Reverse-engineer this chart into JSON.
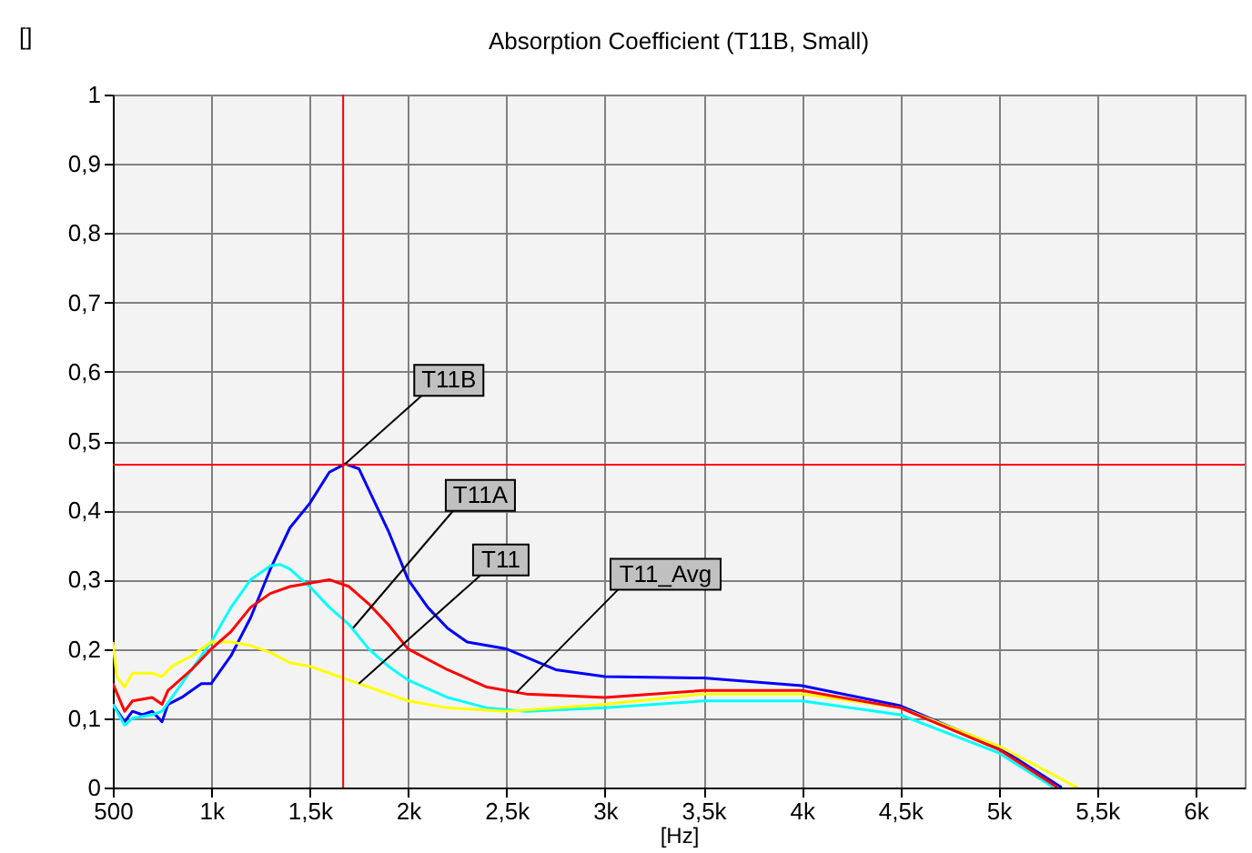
{
  "chart_data": {
    "type": "line",
    "title": "Absorption Coefficient (T11B, Small)",
    "xlabel": "[Hz]",
    "ylabel": "[]",
    "xlim": [
      500,
      6250
    ],
    "ylim": [
      0,
      1
    ],
    "xticks": [
      {
        "value": 500,
        "label": "500"
      },
      {
        "value": 1000,
        "label": "1k"
      },
      {
        "value": 1500,
        "label": "1,5k"
      },
      {
        "value": 2000,
        "label": "2k"
      },
      {
        "value": 2500,
        "label": "2,5k"
      },
      {
        "value": 3000,
        "label": "3k"
      },
      {
        "value": 3500,
        "label": "3,5k"
      },
      {
        "value": 4000,
        "label": "4k"
      },
      {
        "value": 4500,
        "label": "4,5k"
      },
      {
        "value": 5000,
        "label": "5k"
      },
      {
        "value": 5500,
        "label": "5,5k"
      },
      {
        "value": 6000,
        "label": "6k"
      }
    ],
    "yticks": [
      0,
      {
        "value": 0.1,
        "label": "0,1"
      },
      {
        "value": 0.2,
        "label": "0,2"
      },
      {
        "value": 0.3,
        "label": "0,3"
      },
      {
        "value": 0.4,
        "label": "0,4"
      },
      {
        "value": 0.5,
        "label": "0,5"
      },
      {
        "value": 0.6,
        "label": "0,6"
      },
      {
        "value": 0.7,
        "label": "0,7"
      },
      {
        "value": 0.8,
        "label": "0,8"
      },
      {
        "value": 0.9,
        "label": "0,9"
      },
      1
    ],
    "grid": true,
    "series": [
      {
        "color": "#0000ff",
        "x": [
          500,
          560,
          600,
          650,
          700,
          750,
          780,
          850,
          950,
          1000,
          1100,
          1200,
          1300,
          1400,
          1500,
          1600,
          1680,
          1750,
          1800,
          1900,
          2000,
          2100,
          2200,
          2300,
          2500,
          2750,
          3000,
          3500,
          4000,
          4500,
          5000,
          5320
        ],
        "values": [
          0.12,
          0.095,
          0.11,
          0.105,
          0.11,
          0.095,
          0.12,
          0.13,
          0.15,
          0.15,
          0.19,
          0.245,
          0.315,
          0.375,
          0.41,
          0.455,
          0.467,
          0.46,
          0.43,
          0.37,
          0.3,
          0.26,
          0.23,
          0.21,
          0.2,
          0.17,
          0.16,
          0.158,
          0.147,
          0.118,
          0.058,
          0
        ]
      },
      {
        "color": "#00ffff",
        "x": [
          500,
          560,
          600,
          700,
          750,
          800,
          900,
          1000,
          1100,
          1200,
          1300,
          1350,
          1400,
          1500,
          1600,
          1700,
          1800,
          1900,
          2000,
          2200,
          2400,
          2600,
          3000,
          3500,
          4000,
          4500,
          5000,
          5280
        ],
        "values": [
          0.12,
          0.09,
          0.1,
          0.105,
          0.11,
          0.13,
          0.17,
          0.21,
          0.26,
          0.3,
          0.32,
          0.322,
          0.315,
          0.29,
          0.26,
          0.235,
          0.2,
          0.175,
          0.155,
          0.13,
          0.115,
          0.11,
          0.115,
          0.125,
          0.125,
          0.105,
          0.05,
          0
        ]
      },
      {
        "color": "#ffff00",
        "x": [
          500,
          520,
          560,
          600,
          700,
          750,
          800,
          900,
          1000,
          1100,
          1200,
          1300,
          1400,
          1500,
          1600,
          1700,
          1800,
          2000,
          2200,
          2500,
          3000,
          3500,
          4000,
          4500,
          5000,
          5400
        ],
        "values": [
          0.21,
          0.16,
          0.145,
          0.165,
          0.165,
          0.16,
          0.175,
          0.19,
          0.21,
          0.21,
          0.205,
          0.195,
          0.18,
          0.175,
          0.165,
          0.155,
          0.145,
          0.125,
          0.115,
          0.11,
          0.12,
          0.135,
          0.135,
          0.115,
          0.06,
          0
        ]
      },
      {
        "color": "#ff0000",
        "x": [
          500,
          560,
          600,
          700,
          750,
          780,
          900,
          1000,
          1100,
          1200,
          1300,
          1400,
          1500,
          1600,
          1700,
          1800,
          1900,
          2000,
          2200,
          2400,
          2600,
          3000,
          3500,
          4000,
          4500,
          5000,
          5300
        ],
        "values": [
          0.15,
          0.11,
          0.125,
          0.13,
          0.12,
          0.14,
          0.17,
          0.2,
          0.225,
          0.26,
          0.28,
          0.29,
          0.295,
          0.3,
          0.29,
          0.265,
          0.235,
          0.2,
          0.17,
          0.145,
          0.135,
          0.13,
          0.14,
          0.14,
          0.115,
          0.055,
          0
        ]
      }
    ],
    "ref_lines": [
      {
        "axis": "x",
        "value": 1670,
        "color": "#ff0000"
      },
      {
        "axis": "y",
        "value": 0.466,
        "color": "#ff0000"
      }
    ],
    "annotations": [
      {
        "text": "T11B",
        "x": 1680,
        "y": 0.467
      },
      {
        "text": "T11A",
        "x": 1720,
        "y": 0.23
      },
      {
        "text": "T11",
        "x": 1750,
        "y": 0.15
      },
      {
        "text": "T11_Avg",
        "x": 2550,
        "y": 0.137
      }
    ]
  }
}
